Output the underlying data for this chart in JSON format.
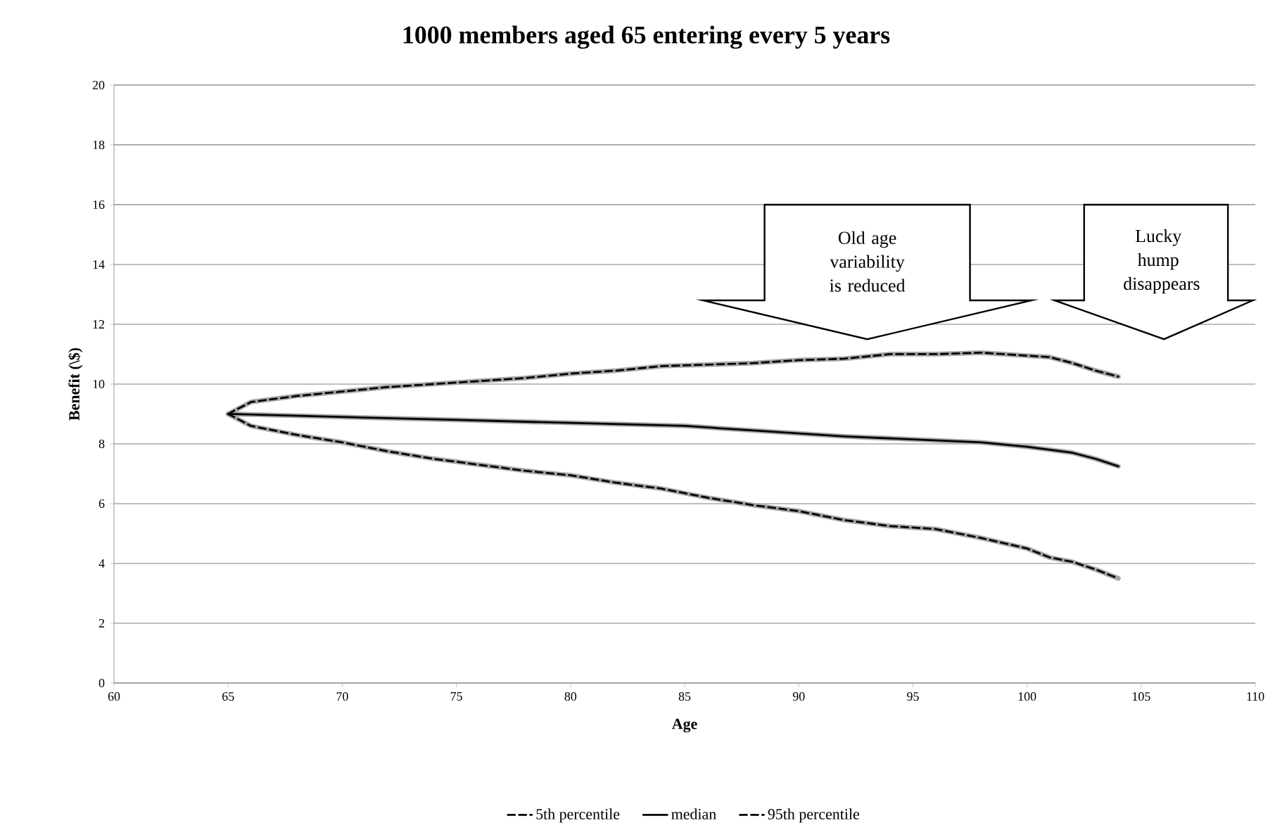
{
  "chart_data": {
    "type": "line",
    "title": "1000 members aged 65 entering every 5 years",
    "xlabel": "Age",
    "ylabel": "Benefit (\\$)",
    "xlim": [
      60,
      110
    ],
    "xticks": [
      60,
      65,
      70,
      75,
      80,
      85,
      90,
      95,
      100,
      105,
      110
    ],
    "ylim": [
      0,
      20
    ],
    "yticks": [
      0,
      2,
      4,
      6,
      8,
      10,
      12,
      14,
      16,
      18,
      20
    ],
    "grid": "y",
    "legend": "bottom",
    "marker": "none",
    "annotations": [
      "Old age variability is reduced",
      "Lucky hump disappears"
    ],
    "series": [
      {
        "color": "#a6a6a6",
        "line_style": "solid",
        "x": [
          65,
          66,
          68,
          70,
          72,
          74,
          76,
          78,
          80,
          82,
          84,
          86,
          88,
          90,
          92,
          94,
          96,
          98,
          100,
          101,
          102,
          103,
          104
        ],
        "values": [
          9.0,
          8.6,
          8.3,
          8.05,
          7.75,
          7.5,
          7.3,
          7.1,
          6.95,
          6.7,
          6.5,
          6.2,
          5.95,
          5.75,
          5.45,
          5.25,
          5.15,
          4.85,
          4.5,
          4.2,
          4.05,
          3.8,
          3.5
        ]
      },
      {
        "color": "#a6a6a6",
        "line_style": "solid",
        "x": [
          65,
          70,
          75,
          80,
          85,
          88,
          90,
          92,
          95,
          98,
          100,
          102,
          103,
          104
        ],
        "values": [
          9.0,
          8.9,
          8.8,
          8.7,
          8.6,
          8.45,
          8.35,
          8.25,
          8.15,
          8.05,
          7.9,
          7.7,
          7.5,
          7.25
        ]
      },
      {
        "color": "#a6a6a6",
        "line_style": "solid",
        "x": [
          65,
          66,
          68,
          70,
          72,
          74,
          76,
          78,
          80,
          82,
          84,
          86,
          88,
          90,
          92,
          94,
          96,
          98,
          100,
          101,
          102,
          103,
          104
        ],
        "values": [
          9.0,
          9.4,
          9.6,
          9.75,
          9.9,
          10.0,
          10.1,
          10.2,
          10.35,
          10.45,
          10.6,
          10.65,
          10.7,
          10.8,
          10.85,
          11.0,
          11.0,
          11.05,
          10.95,
          10.9,
          10.7,
          10.45,
          10.25
        ]
      },
      {
        "name": "5th percentile",
        "color": "#000000",
        "line_style": "dashed",
        "x": [
          65,
          66,
          68,
          70,
          72,
          74,
          76,
          78,
          80,
          82,
          84,
          86,
          88,
          90,
          92,
          94,
          96,
          98,
          100,
          101,
          102,
          103,
          104
        ],
        "values": [
          9.0,
          8.6,
          8.3,
          8.05,
          7.75,
          7.5,
          7.3,
          7.1,
          6.95,
          6.7,
          6.5,
          6.2,
          5.95,
          5.75,
          5.45,
          5.25,
          5.15,
          4.85,
          4.5,
          4.2,
          4.05,
          3.8,
          3.5
        ]
      },
      {
        "name": "median",
        "color": "#000000",
        "line_style": "solid",
        "x": [
          65,
          70,
          75,
          80,
          85,
          88,
          90,
          92,
          95,
          98,
          100,
          102,
          103,
          104
        ],
        "values": [
          9.0,
          8.9,
          8.8,
          8.7,
          8.6,
          8.45,
          8.35,
          8.25,
          8.15,
          8.05,
          7.9,
          7.7,
          7.5,
          7.25
        ]
      },
      {
        "name": "95th percentile",
        "color": "#000000",
        "line_style": "dashed",
        "x": [
          65,
          66,
          68,
          70,
          72,
          74,
          76,
          78,
          80,
          82,
          84,
          86,
          88,
          90,
          92,
          94,
          96,
          98,
          100,
          101,
          102,
          103,
          104
        ],
        "values": [
          9.0,
          9.4,
          9.6,
          9.75,
          9.9,
          10.0,
          10.1,
          10.2,
          10.35,
          10.45,
          10.6,
          10.65,
          10.7,
          10.8,
          10.85,
          11.0,
          11.0,
          11.05,
          10.95,
          10.9,
          10.7,
          10.45,
          10.25
        ]
      }
    ]
  }
}
